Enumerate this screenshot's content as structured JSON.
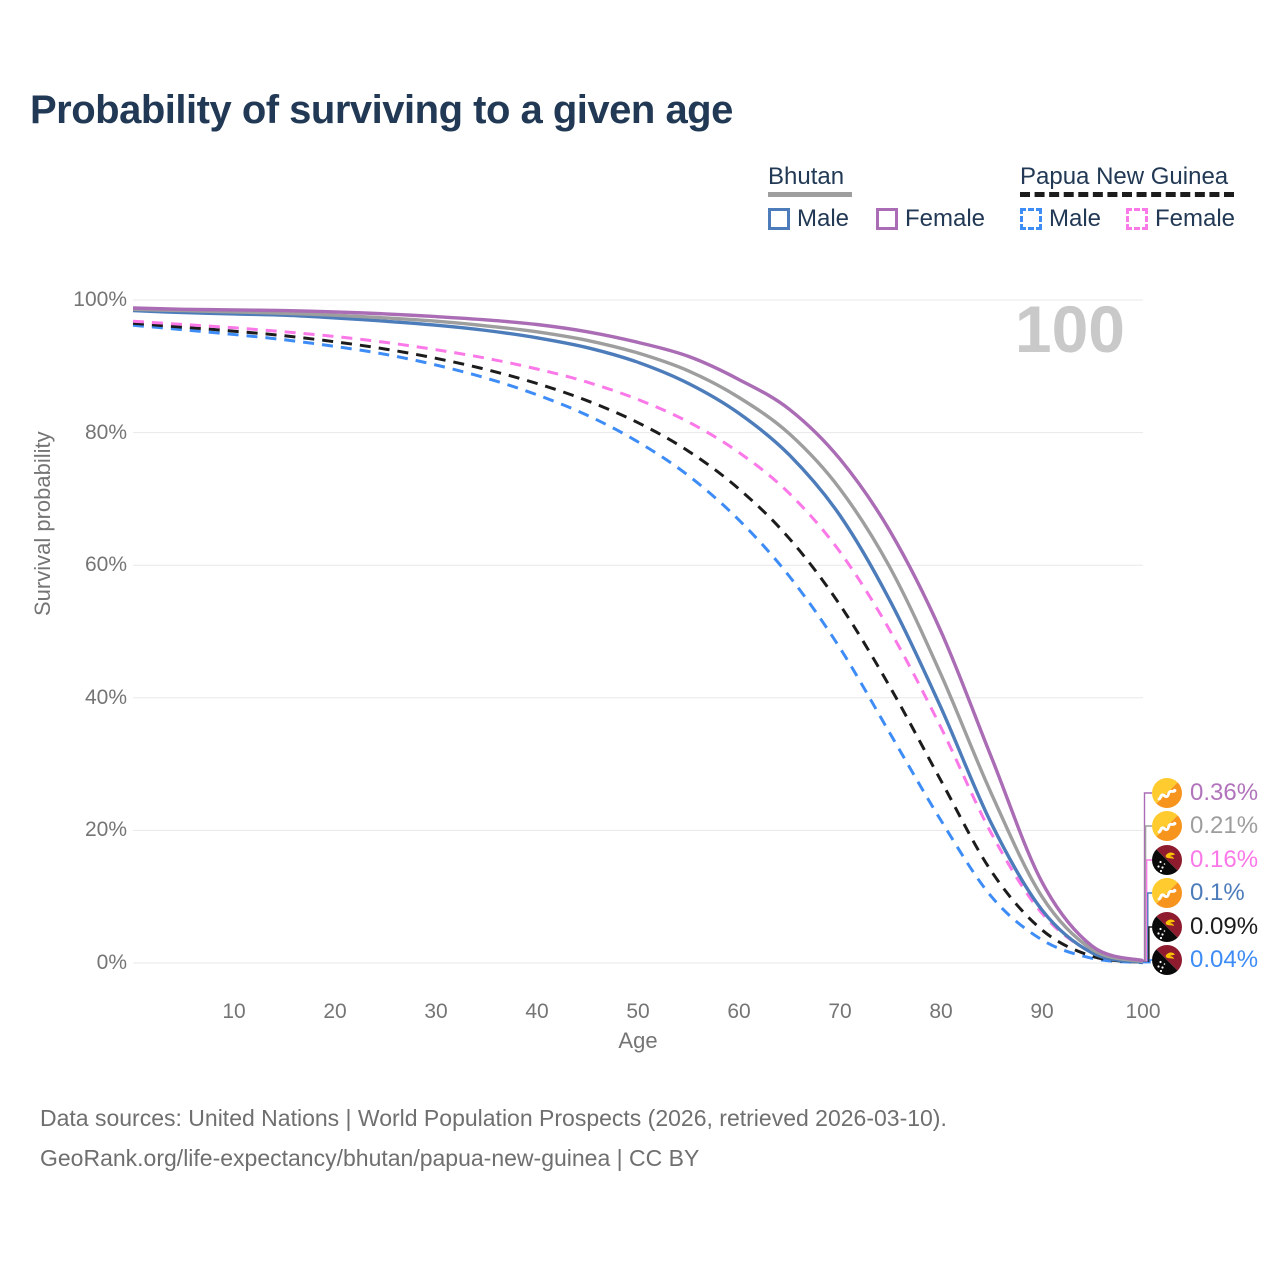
{
  "title": "Probability of surviving to a given age",
  "watermark": "100",
  "legend": {
    "groups": [
      {
        "name": "Bhutan",
        "line_style": "solid",
        "underline_color": "#9e9e9e",
        "items": [
          {
            "label": "Male",
            "color": "#4d7cba"
          },
          {
            "label": "Female",
            "color": "#aa6cb4"
          }
        ]
      },
      {
        "name": "Papua New Guinea",
        "line_style": "dashed",
        "underline_color": "#1c1c1c",
        "items": [
          {
            "label": "Male",
            "color": "#3e8cf6"
          },
          {
            "label": "Female",
            "color": "#fb78e8"
          }
        ]
      }
    ]
  },
  "axes": {
    "y": {
      "label": "Survival probability",
      "ticks": [
        "0%",
        "20%",
        "40%",
        "60%",
        "80%",
        "100%"
      ],
      "tick_values": [
        0,
        20,
        40,
        60,
        80,
        100
      ]
    },
    "x": {
      "label": "Age",
      "ticks": [
        "10",
        "20",
        "30",
        "40",
        "50",
        "60",
        "70",
        "80",
        "90",
        "100"
      ],
      "tick_values": [
        10,
        20,
        30,
        40,
        50,
        60,
        70,
        80,
        90,
        100
      ]
    }
  },
  "end_labels": [
    {
      "value": "0.36%",
      "flag": "bhutan-flag",
      "color": "#b173bb",
      "series": "Bhutan Female"
    },
    {
      "value": "0.21%",
      "flag": "bhutan-flag",
      "color": "#9e9e9e",
      "series": "Bhutan"
    },
    {
      "value": "0.16%",
      "flag": "png-flag",
      "color": "#fb78e8",
      "series": "Papua New Guinea Female"
    },
    {
      "value": "0.1%",
      "flag": "bhutan-flag",
      "color": "#4d7cba",
      "series": "Bhutan Male"
    },
    {
      "value": "0.09%",
      "flag": "png-flag",
      "color": "#1c1c1c",
      "series": "Papua New Guinea"
    },
    {
      "value": "0.04%",
      "flag": "png-flag",
      "color": "#3e8cf6",
      "series": "Papua New Guinea Male"
    }
  ],
  "footer": {
    "line1": "Data sources: United Nations | World Population Prospects (2026, retrieved 2026-03-10).",
    "line2": "GeoRank.org/life-expectancy/bhutan/papua-new-guinea | CC BY"
  },
  "chart_data": {
    "type": "line",
    "title": "Probability of surviving to a given age",
    "xlabel": "Age",
    "ylabel": "Survival probability",
    "xlim": [
      0,
      100
    ],
    "ylim": [
      0,
      100
    ],
    "grid": "horizontal",
    "x": [
      0,
      5,
      10,
      15,
      20,
      25,
      30,
      35,
      40,
      45,
      50,
      55,
      60,
      65,
      70,
      75,
      80,
      85,
      90,
      95,
      100
    ],
    "series": [
      {
        "name": "Papua New Guinea Male",
        "color": "#3e8cf6",
        "dash": "dashed",
        "values": [
          96.2,
          95.5,
          94.8,
          94.0,
          93.0,
          91.8,
          90.2,
          88.2,
          85.7,
          82.6,
          78.6,
          73.5,
          66.8,
          58.3,
          47.5,
          34.5,
          21.5,
          10.0,
          3.5,
          0.7,
          0.04
        ]
      },
      {
        "name": "Papua New Guinea",
        "color": "#1c1c1c",
        "dash": "dashed",
        "values": [
          96.5,
          95.9,
          95.3,
          94.6,
          93.7,
          92.6,
          91.2,
          89.5,
          87.4,
          84.8,
          81.5,
          77.2,
          71.5,
          64.0,
          54.0,
          41.5,
          27.5,
          13.8,
          5.0,
          1.0,
          0.09
        ]
      },
      {
        "name": "Papua New Guinea Female",
        "color": "#fb78e8",
        "dash": "dashed",
        "values": [
          96.8,
          96.3,
          95.8,
          95.2,
          94.5,
          93.6,
          92.5,
          91.2,
          89.6,
          87.6,
          85.0,
          81.6,
          77.0,
          70.8,
          62.0,
          50.0,
          35.5,
          19.5,
          7.5,
          1.6,
          0.16
        ]
      },
      {
        "name": "Bhutan Male",
        "color": "#4d7cba",
        "dash": "solid",
        "values": [
          98.4,
          98.1,
          97.9,
          97.7,
          97.3,
          96.8,
          96.2,
          95.4,
          94.3,
          92.8,
          90.6,
          87.4,
          82.9,
          76.6,
          67.5,
          54.5,
          38.5,
          21.0,
          8.0,
          1.5,
          0.1
        ]
      },
      {
        "name": "Bhutan",
        "color": "#9e9e9e",
        "dash": "solid",
        "values": [
          98.6,
          98.4,
          98.2,
          98.0,
          97.7,
          97.3,
          96.8,
          96.1,
          95.2,
          93.9,
          92.0,
          89.3,
          85.3,
          79.8,
          71.5,
          59.5,
          43.5,
          25.5,
          10.0,
          2.0,
          0.21
        ]
      },
      {
        "name": "Bhutan Female",
        "color": "#aa6cb4",
        "dash": "solid",
        "values": [
          98.8,
          98.6,
          98.5,
          98.4,
          98.2,
          97.9,
          97.5,
          97.0,
          96.3,
          95.2,
          93.6,
          91.5,
          88.0,
          83.5,
          76.0,
          65.0,
          50.0,
          31.0,
          12.2,
          2.5,
          0.36
        ]
      }
    ],
    "legend_position": "top-right",
    "annotations": [
      "100"
    ]
  }
}
